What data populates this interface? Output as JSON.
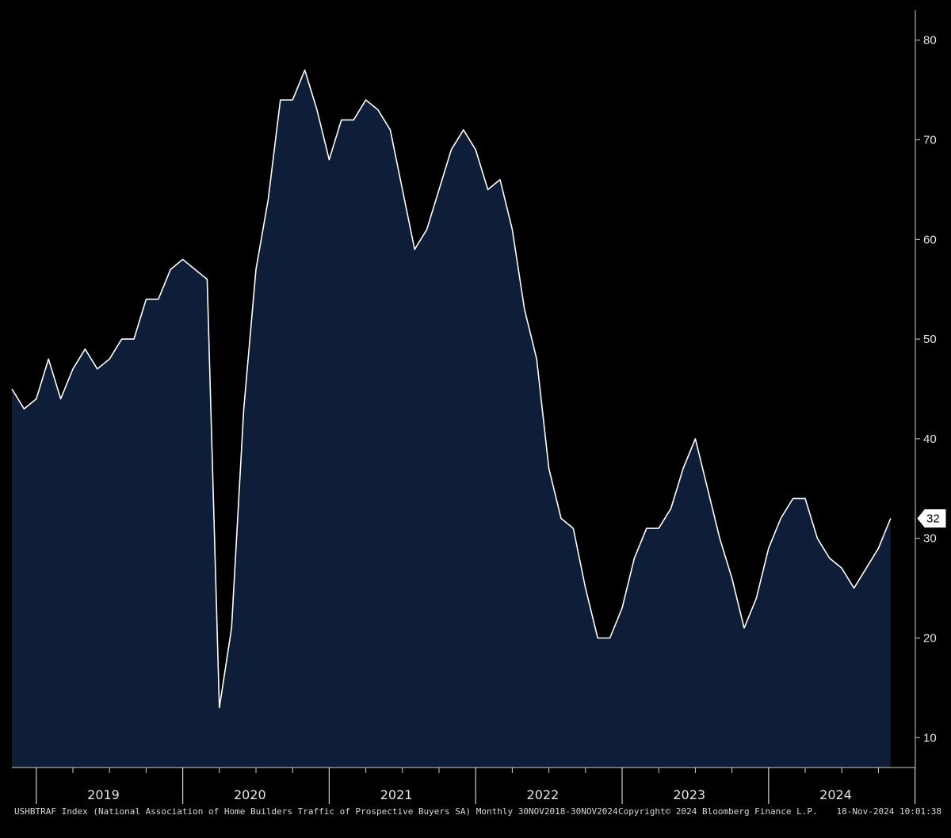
{
  "chart_data": {
    "type": "area",
    "series": [
      {
        "values": [
          45,
          43,
          44,
          48,
          44,
          47,
          49,
          47,
          48,
          50,
          50,
          54,
          54,
          57,
          58,
          57,
          56,
          13,
          21,
          43,
          57,
          64,
          74,
          74,
          77,
          73,
          68,
          72,
          72,
          74,
          73,
          71,
          65,
          59,
          61,
          65,
          69,
          71,
          69,
          65,
          66,
          61,
          53,
          48,
          37,
          32,
          31,
          25,
          20,
          20,
          23,
          28,
          31,
          31,
          33,
          37,
          40,
          35,
          30,
          26,
          21,
          24,
          29,
          32,
          34,
          34,
          30,
          28,
          27,
          25,
          27,
          29,
          32
        ]
      }
    ],
    "x_start": "Nov 2018",
    "x_end": "Nov 2024",
    "frequency": "Monthly",
    "year_labels": [
      "2019",
      "2020",
      "2021",
      "2022",
      "2023",
      "2024"
    ],
    "y_ticks": [
      10,
      20,
      30,
      40,
      50,
      60,
      70,
      80
    ],
    "ylim": [
      7,
      83
    ],
    "last_value": "32",
    "grid": false,
    "colors": {
      "fill": "#0e1d38",
      "line": "#ffffff",
      "background": "#000000",
      "frame": "#d0d0d0"
    }
  },
  "footer": {
    "left": "USHBTRAF Index (National Association of Home Builders Traffic of Prospective Buyers SA)  Monthly 30NOV2018-30NOV2024",
    "middle": "Copyright© 2024 Bloomberg Finance L.P.",
    "right": "18-Nov-2024 10:01:38"
  }
}
